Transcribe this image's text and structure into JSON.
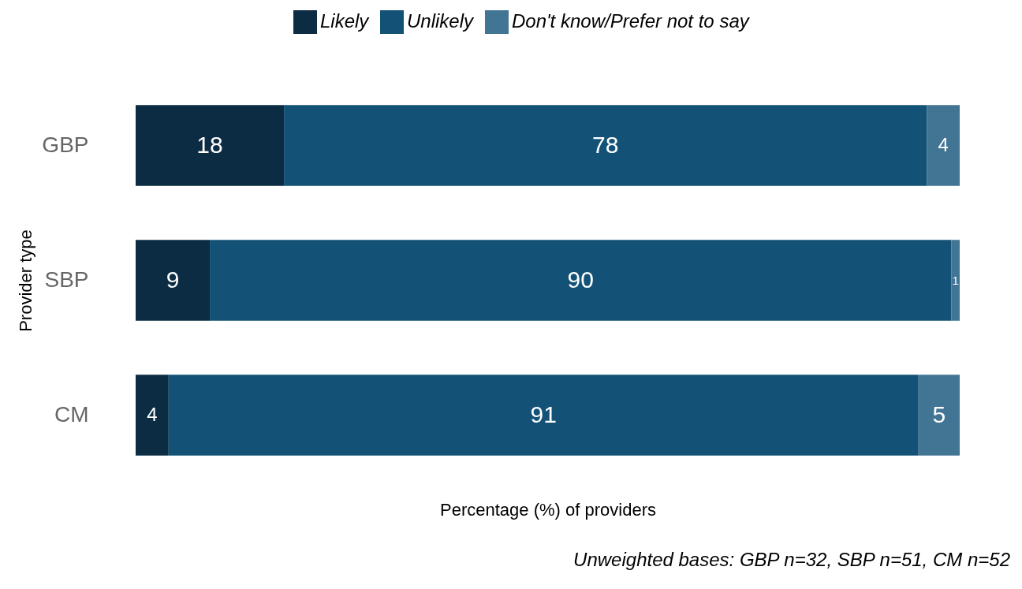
{
  "chart_data": {
    "type": "bar",
    "orientation": "horizontal",
    "stacked": true,
    "data_labels": true,
    "tick_labels": "y",
    "legend": "top",
    "grid": false,
    "ylabel": "Provider type",
    "xlabel": "Percentage (%) of providers",
    "annotations": [
      "Unweighted bases: GBP n=32, SBP n=51, CM n=52"
    ],
    "categories": [
      "GBP",
      "SBP",
      "CM"
    ],
    "series": [
      {
        "name": "Likely",
        "color": "#0b2c43",
        "values": [
          18,
          9,
          4
        ]
      },
      {
        "name": "Unlikely",
        "color": "#135276",
        "values": [
          78,
          90,
          91
        ]
      },
      {
        "name": "Don't know/Prefer not to say",
        "color": "#427594",
        "values": [
          4,
          1,
          5
        ]
      }
    ]
  }
}
